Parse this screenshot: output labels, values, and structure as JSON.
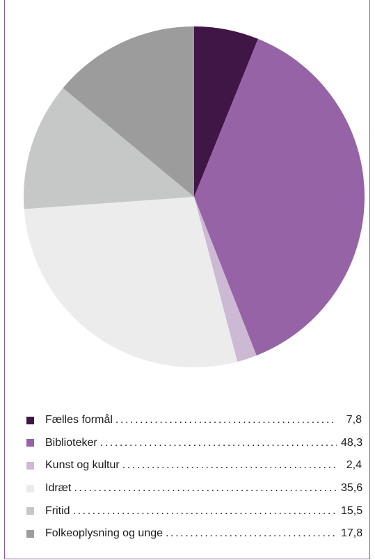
{
  "chart_data": {
    "type": "pie",
    "title": "",
    "slices": [
      {
        "label": "Fælles formål",
        "display": "7,8",
        "value": 7.8,
        "color": "#3f1646"
      },
      {
        "label": "Biblioteker",
        "display": "48,3",
        "value": 48.3,
        "color": "#9663a6"
      },
      {
        "label": "Kunst og kultur",
        "display": "2,4",
        "value": 2.4,
        "color": "#cdb9d4"
      },
      {
        "label": "Idræt",
        "display": "35,6",
        "value": 35.6,
        "color": "#ececec"
      },
      {
        "label": "Fritid",
        "display": "15,5",
        "value": 15.5,
        "color": "#c6c7c7"
      },
      {
        "label": "Folkeoplysning og unge",
        "display": "17,8",
        "value": 17.8,
        "color": "#9c9c9c"
      }
    ],
    "legend_position": "bottom",
    "start_angle": "top",
    "direction": "clockwise"
  }
}
